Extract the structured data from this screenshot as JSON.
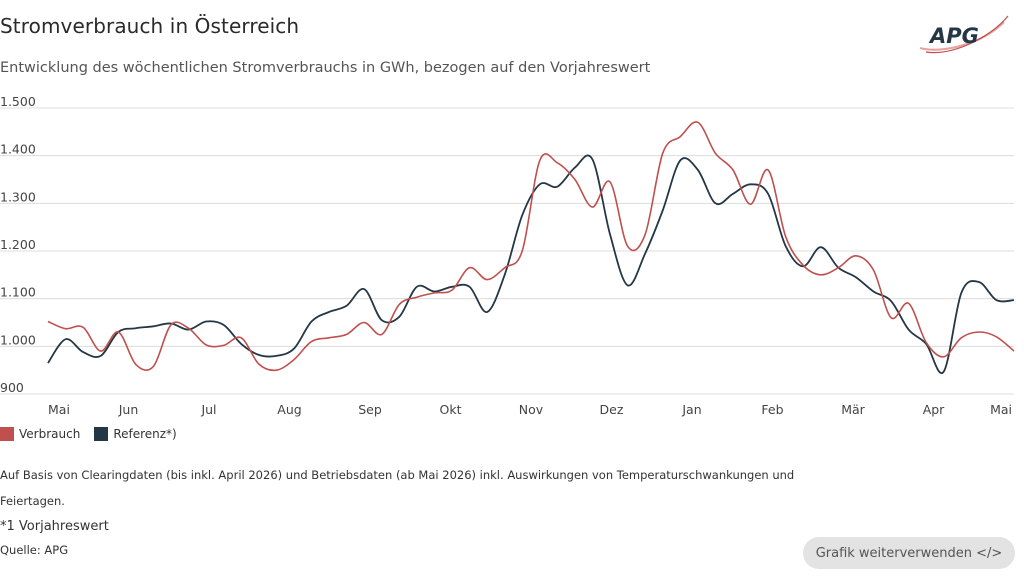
{
  "title": "Stromverbrauch in Österreich",
  "subtitle": "Entwicklung des wöchentlichen Stromverbrauchs in GWh, bezogen auf den Vorjahreswert",
  "logo_text": "APG",
  "footnote_main": "Auf Basis von Clearingdaten (bis inkl. April 2026) und Betriebsdaten (ab Mai 2026) inkl. Auswirkungen von Temperaturschwankungen und Feiertagen.",
  "footnote_ref": "*1 Vorjahreswert",
  "source": "Quelle: APG",
  "reuse_button": "Grafik weiterverwenden </>",
  "colors": {
    "verbrauch": "#c0504d",
    "referenz": "#243746",
    "grid": "#dcdcdc"
  },
  "chart_data": {
    "type": "line",
    "title": "Stromverbrauch in Österreich",
    "subtitle": "Entwicklung des wöchentlichen Stromverbrauchs in GWh, bezogen auf den Vorjahreswert",
    "xlabel": "",
    "ylabel": "",
    "ylim": [
      900,
      1500
    ],
    "yticks": [
      900,
      1000,
      1100,
      1200,
      1300,
      1400,
      1500
    ],
    "ytick_labels": [
      "900",
      "1.000",
      "1.100",
      "1.200",
      "1.300",
      "1.400",
      "1.500"
    ],
    "month_labels": [
      "Mai",
      "Jun",
      "Jul",
      "Aug",
      "Sep",
      "Okt",
      "Nov",
      "Dez",
      "Jan",
      "Feb",
      "Mär",
      "Apr",
      "Mai"
    ],
    "grid": true,
    "legend_position": "bottom-left",
    "series": [
      {
        "name": "Verbrauch",
        "values": [
          1052,
          1037,
          1040,
          990,
          1030,
          962,
          958,
          1045,
          1038,
          1003,
          1002,
          1018,
          963,
          950,
          972,
          1010,
          1018,
          1025,
          1050,
          1025,
          1088,
          1103,
          1112,
          1118,
          1165,
          1140,
          1165,
          1200,
          1390,
          1385,
          1350,
          1292,
          1345,
          1210,
          1235,
          1405,
          1440,
          1470,
          1405,
          1370,
          1298,
          1370,
          1230,
          1170,
          1150,
          1165,
          1190,
          1160,
          1060,
          1090,
          1008,
          978,
          1018,
          1030,
          1020,
          990
        ]
      },
      {
        "name": "Referenz*)",
        "values": [
          965,
          1015,
          988,
          980,
          1030,
          1038,
          1042,
          1048,
          1035,
          1052,
          1045,
          1005,
          982,
          980,
          995,
          1052,
          1072,
          1085,
          1120,
          1055,
          1062,
          1125,
          1115,
          1125,
          1125,
          1072,
          1150,
          1275,
          1340,
          1335,
          1375,
          1392,
          1235,
          1128,
          1195,
          1285,
          1390,
          1370,
          1300,
          1320,
          1340,
          1320,
          1210,
          1168,
          1208,
          1165,
          1145,
          1115,
          1095,
          1035,
          1005,
          947,
          1112,
          1135,
          1097,
          1097
        ]
      }
    ]
  }
}
